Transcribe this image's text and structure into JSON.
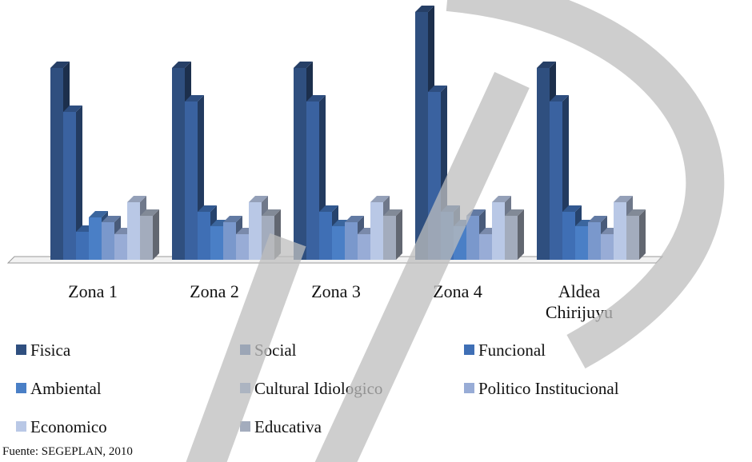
{
  "chart_data": {
    "type": "bar3d",
    "categories": [
      "Zona 1",
      "Zona 2",
      "Zona 3",
      "Zona 4",
      "Aldea Chirijuyu"
    ],
    "series": [
      {
        "name": "Fisica",
        "color": "#2f4f7f",
        "values": [
          240,
          240,
          240,
          310,
          240
        ]
      },
      {
        "name": "Social",
        "color": "#3a62a0",
        "values": [
          185,
          198,
          198,
          210,
          198
        ]
      },
      {
        "name": "Funcional",
        "color": "#3f6fb5",
        "values": [
          35,
          60,
          60,
          60,
          60
        ]
      },
      {
        "name": "Ambiental",
        "color": "#4a7fc6",
        "values": [
          53,
          42,
          42,
          42,
          42
        ]
      },
      {
        "name": "Cultural Idiologico",
        "color": "#7a98cc",
        "values": [
          47,
          47,
          47,
          55,
          47
        ]
      },
      {
        "name": "Politico Institucional",
        "color": "#98acd6",
        "values": [
          32,
          32,
          32,
          32,
          32
        ]
      },
      {
        "name": "Economico",
        "color": "#b9c8e6",
        "values": [
          72,
          72,
          72,
          72,
          72
        ]
      },
      {
        "name": "Educativa",
        "color": "#a3acbd",
        "values": [
          55,
          55,
          55,
          55,
          55
        ]
      }
    ],
    "ylim": [
      0,
      310
    ],
    "source": "Fuente: SEGEPLAN, 2010"
  }
}
